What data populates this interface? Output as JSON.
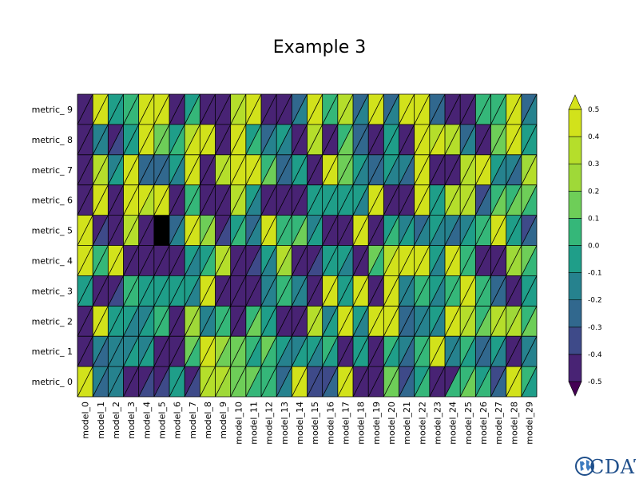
{
  "chart_data": {
    "type": "heatmap",
    "title": "Example 3",
    "xlabels": [
      "model_0",
      "model_1",
      "model_2",
      "model_3",
      "model_4",
      "model_5",
      "model_6",
      "model_7",
      "model_8",
      "model_9",
      "model_10",
      "model_11",
      "model_12",
      "model_13",
      "model_14",
      "model_15",
      "model_16",
      "model_17",
      "model_18",
      "model_19",
      "model_20",
      "model_21",
      "model_22",
      "model_23",
      "model_24",
      "model_25",
      "model_26",
      "model_27",
      "model_28",
      "model_29"
    ],
    "ylabels": [
      "metric_0",
      "metric_1",
      "metric_2",
      "metric_3",
      "metric_4",
      "metric_5",
      "metric_6",
      "metric_7",
      "metric_8",
      "metric_9"
    ],
    "ylabel_display": [
      "metric_ 0",
      "metric_ 1",
      "metric_ 2",
      "metric_ 3",
      "metric_ 4",
      "metric_ 5",
      "metric_ 6",
      "metric_ 7",
      "metric_ 8",
      "metric_ 9"
    ],
    "colorbar": {
      "levels": [
        -0.5,
        -0.4,
        -0.3,
        -0.2,
        -0.1,
        0.0,
        0.1,
        0.2,
        0.3,
        0.4,
        0.5
      ],
      "tick_labels": [
        "-0.5",
        "-0.4",
        "-0.3",
        "-0.2",
        "-0.1",
        "0.0",
        "0.1",
        "0.2",
        "0.3",
        "0.4",
        "0.5"
      ],
      "colors": [
        "#482374",
        "#3e4a89",
        "#31688e",
        "#26828e",
        "#1f9e89",
        "#35b779",
        "#6ece58",
        "#9fd938",
        "#b5de2b",
        "#d2e21b"
      ],
      "under_color": "#440154",
      "over_color": "#d5e21a",
      "missing_color": "#000000"
    },
    "missing": [
      {
        "row": 5,
        "col": 5
      }
    ],
    "values": [
      [
        [
          0.48,
          0.45
        ],
        [
          -0.2,
          -0.25
        ],
        [
          -0.2,
          -0.15
        ],
        [
          -0.45,
          -0.48
        ],
        [
          -0.45,
          -0.4
        ],
        [
          -0.45,
          -0.35
        ],
        [
          -0.1,
          -0.1
        ],
        [
          -0.45,
          -0.35
        ],
        [
          0.35,
          0.35
        ],
        [
          0.35,
          0.25
        ],
        [
          0.15,
          0.1
        ],
        [
          0.15,
          0.05
        ],
        [
          0.05,
          0.0
        ],
        [
          -0.25,
          -0.2
        ],
        [
          0.48,
          0.45
        ],
        [
          -0.35,
          -0.4
        ],
        [
          -0.4,
          -0.25
        ],
        [
          0.45,
          0.4
        ],
        [
          -0.48,
          -0.45
        ],
        [
          -0.48,
          -0.48
        ],
        [
          0.15,
          0.1
        ],
        [
          -0.35,
          -0.25
        ],
        [
          -0.1,
          0.0
        ],
        [
          -0.48,
          -0.48
        ],
        [
          -0.45,
          0.0
        ],
        [
          0.05,
          0.1
        ],
        [
          -0.1,
          0.0
        ],
        [
          -0.35,
          -0.25
        ],
        [
          0.48,
          0.45
        ],
        [
          0.0,
          -0.05
        ]
      ],
      [
        [
          -0.48,
          -0.45
        ],
        [
          -0.2,
          -0.25
        ],
        [
          -0.2,
          -0.15
        ],
        [
          -0.15,
          -0.1
        ],
        [
          -0.15,
          -0.1
        ],
        [
          -0.45,
          -0.48
        ],
        [
          -0.45,
          -0.48
        ],
        [
          0.1,
          0.05
        ],
        [
          0.48,
          0.45
        ],
        [
          0.2,
          0.1
        ],
        [
          0.15,
          0.1
        ],
        [
          0.05,
          -0.05
        ],
        [
          0.1,
          0.05
        ],
        [
          -0.1,
          -0.15
        ],
        [
          -0.15,
          -0.1
        ],
        [
          -0.1,
          -0.2
        ],
        [
          0.0,
          -0.05
        ],
        [
          -0.48,
          -0.45
        ],
        [
          -0.1,
          -0.05
        ],
        [
          -0.45,
          -0.48
        ],
        [
          0.05,
          -0.05
        ],
        [
          -0.2,
          -0.25
        ],
        [
          0.05,
          0.05
        ],
        [
          0.48,
          0.45
        ],
        [
          -0.2,
          -0.15
        ],
        [
          0.05,
          -0.05
        ],
        [
          -0.3,
          -0.25
        ],
        [
          -0.1,
          -0.15
        ],
        [
          -0.45,
          -0.48
        ],
        [
          -0.2,
          -0.15
        ]
      ],
      [
        [
          -0.48,
          -0.45
        ],
        [
          0.48,
          0.45
        ],
        [
          -0.1,
          -0.05
        ],
        [
          -0.1,
          -0.15
        ],
        [
          -0.15,
          -0.1
        ],
        [
          0.05,
          0.0
        ],
        [
          -0.48,
          -0.45
        ],
        [
          0.25,
          0.2
        ],
        [
          -0.2,
          -0.15
        ],
        [
          0.05,
          0.0
        ],
        [
          -0.45,
          -0.48
        ],
        [
          0.05,
          0.1
        ],
        [
          -0.1,
          -0.05
        ],
        [
          -0.45,
          -0.45
        ],
        [
          -0.45,
          -0.45
        ],
        [
          0.35,
          0.3
        ],
        [
          -0.15,
          -0.1
        ],
        [
          0.48,
          0.45
        ],
        [
          -0.1,
          -0.15
        ],
        [
          0.48,
          0.45
        ],
        [
          0.48,
          0.45
        ],
        [
          -0.25,
          -0.3
        ],
        [
          -0.2,
          -0.15
        ],
        [
          -0.1,
          -0.15
        ],
        [
          0.48,
          0.45
        ],
        [
          0.35,
          0.3
        ],
        [
          0.05,
          0.1
        ],
        [
          0.3,
          0.35
        ],
        [
          0.25,
          0.3
        ],
        [
          0.05,
          0.1
        ]
      ],
      [
        [
          -0.1,
          -0.05
        ],
        [
          -0.48,
          -0.45
        ],
        [
          -0.45,
          -0.4
        ],
        [
          0.05,
          0.0
        ],
        [
          -0.1,
          -0.05
        ],
        [
          -0.1,
          -0.05
        ],
        [
          -0.05,
          -0.1
        ],
        [
          -0.1,
          -0.15
        ],
        [
          0.48,
          0.45
        ],
        [
          -0.45,
          -0.48
        ],
        [
          -0.45,
          -0.48
        ],
        [
          -0.45,
          -0.48
        ],
        [
          -0.2,
          -0.15
        ],
        [
          0.0,
          0.05
        ],
        [
          -0.2,
          -0.15
        ],
        [
          -0.45,
          -0.48
        ],
        [
          0.48,
          0.45
        ],
        [
          -0.1,
          -0.05
        ],
        [
          0.45,
          0.45
        ],
        [
          -0.45,
          -0.48
        ],
        [
          0.48,
          0.45
        ],
        [
          -0.2,
          -0.15
        ],
        [
          0.0,
          0.05
        ],
        [
          -0.1,
          -0.15
        ],
        [
          0.0,
          0.05
        ],
        [
          0.48,
          0.45
        ],
        [
          0.05,
          0.0
        ],
        [
          -0.3,
          -0.25
        ],
        [
          -0.45,
          -0.48
        ],
        [
          -0.1,
          -0.05
        ]
      ],
      [
        [
          0.45,
          0.4
        ],
        [
          0.05,
          0.0
        ],
        [
          0.48,
          0.45
        ],
        [
          -0.45,
          -0.48
        ],
        [
          -0.45,
          -0.48
        ],
        [
          -0.45,
          -0.48
        ],
        [
          -0.45,
          -0.48
        ],
        [
          -0.1,
          -0.15
        ],
        [
          -0.05,
          0.0
        ],
        [
          0.35,
          0.3
        ],
        [
          -0.45,
          -0.48
        ],
        [
          -0.45,
          -0.35
        ],
        [
          -0.1,
          -0.15
        ],
        [
          0.3,
          0.25
        ],
        [
          -0.45,
          -0.48
        ],
        [
          -0.45,
          -0.35
        ],
        [
          -0.1,
          -0.05
        ],
        [
          -0.1,
          -0.15
        ],
        [
          -0.45,
          -0.48
        ],
        [
          0.1,
          0.05
        ],
        [
          0.35,
          0.4
        ],
        [
          0.48,
          0.45
        ],
        [
          0.45,
          0.4
        ],
        [
          -0.1,
          -0.15
        ],
        [
          0.48,
          0.45
        ],
        [
          0.05,
          0.0
        ],
        [
          -0.45,
          -0.48
        ],
        [
          -0.45,
          -0.48
        ],
        [
          0.2,
          0.25
        ],
        [
          0.1,
          0.05
        ]
      ],
      [
        [
          0.45,
          0.4
        ],
        [
          -0.45,
          -0.35
        ],
        [
          -0.45,
          -0.48
        ],
        [
          0.35,
          0.3
        ],
        [
          -0.45,
          -0.48
        ],
        [
          null,
          null
        ],
        [
          -0.25,
          -0.2
        ],
        [
          0.48,
          0.45
        ],
        [
          0.15,
          0.2
        ],
        [
          -0.45,
          -0.35
        ],
        [
          -0.05,
          0.0
        ],
        [
          -0.25,
          -0.2
        ],
        [
          0.48,
          0.45
        ],
        [
          0.0,
          0.05
        ],
        [
          0.05,
          0.1
        ],
        [
          -0.15,
          -0.1
        ],
        [
          -0.45,
          -0.48
        ],
        [
          -0.45,
          -0.48
        ],
        [
          0.48,
          0.45
        ],
        [
          -0.45,
          -0.48
        ],
        [
          -0.05,
          0.0
        ],
        [
          -0.15,
          -0.1
        ],
        [
          -0.25,
          -0.2
        ],
        [
          -0.1,
          -0.15
        ],
        [
          -0.2,
          -0.25
        ],
        [
          -0.15,
          -0.1
        ],
        [
          0.05,
          0.0
        ],
        [
          0.48,
          0.45
        ],
        [
          -0.1,
          -0.05
        ],
        [
          -0.35,
          -0.25
        ]
      ],
      [
        [
          -0.48,
          -0.45
        ],
        [
          0.48,
          0.4
        ],
        [
          -0.45,
          -0.48
        ],
        [
          0.48,
          0.45
        ],
        [
          0.45,
          0.35
        ],
        [
          0.48,
          0.4
        ],
        [
          -0.45,
          -0.48
        ],
        [
          0.05,
          0.0
        ],
        [
          -0.45,
          -0.48
        ],
        [
          -0.45,
          -0.48
        ],
        [
          0.35,
          0.3
        ],
        [
          -0.1,
          -0.15
        ],
        [
          -0.45,
          -0.48
        ],
        [
          -0.45,
          -0.48
        ],
        [
          -0.45,
          -0.48
        ],
        [
          -0.1,
          -0.05
        ],
        [
          -0.05,
          -0.1
        ],
        [
          -0.1,
          -0.05
        ],
        [
          -0.1,
          -0.15
        ],
        [
          0.48,
          0.45
        ],
        [
          -0.45,
          -0.48
        ],
        [
          -0.45,
          -0.48
        ],
        [
          0.48,
          0.45
        ],
        [
          -0.1,
          -0.05
        ],
        [
          0.35,
          0.35
        ],
        [
          0.35,
          0.3
        ],
        [
          -0.35,
          -0.25
        ],
        [
          0.05,
          0.1
        ],
        [
          0.05,
          0.1
        ],
        [
          0.1,
          0.05
        ]
      ],
      [
        [
          -0.48,
          -0.45
        ],
        [
          0.35,
          0.3
        ],
        [
          -0.15,
          -0.1
        ],
        [
          0.48,
          0.45
        ],
        [
          -0.25,
          -0.3
        ],
        [
          -0.25,
          -0.3
        ],
        [
          -0.1,
          -0.15
        ],
        [
          0.48,
          0.45
        ],
        [
          -0.45,
          -0.48
        ],
        [
          0.35,
          0.3
        ],
        [
          0.48,
          0.45
        ],
        [
          0.48,
          0.45
        ],
        [
          0.05,
          0.1
        ],
        [
          -0.25,
          -0.3
        ],
        [
          -0.1,
          -0.05
        ],
        [
          -0.48,
          -0.45
        ],
        [
          0.45,
          0.4
        ],
        [
          0.15,
          0.1
        ],
        [
          -0.1,
          -0.15
        ],
        [
          -0.25,
          -0.3
        ],
        [
          -0.1,
          -0.15
        ],
        [
          -0.2,
          -0.25
        ],
        [
          0.48,
          0.45
        ],
        [
          -0.45,
          -0.48
        ],
        [
          -0.45,
          -0.48
        ],
        [
          0.35,
          0.3
        ],
        [
          0.48,
          0.4
        ],
        [
          -0.1,
          -0.15
        ],
        [
          -0.2,
          -0.25
        ],
        [
          0.25,
          0.3
        ]
      ],
      [
        [
          -0.48,
          -0.45
        ],
        [
          -0.15,
          -0.2
        ],
        [
          -0.45,
          -0.35
        ],
        [
          -0.1,
          -0.05
        ],
        [
          0.48,
          0.45
        ],
        [
          0.15,
          0.1
        ],
        [
          -0.05,
          0.0
        ],
        [
          0.35,
          0.4
        ],
        [
          0.48,
          0.45
        ],
        [
          -0.45,
          -0.48
        ],
        [
          0.48,
          0.45
        ],
        [
          -0.05,
          0.0
        ],
        [
          -0.25,
          -0.2
        ],
        [
          -0.1,
          -0.15
        ],
        [
          -0.45,
          -0.48
        ],
        [
          0.35,
          0.3
        ],
        [
          -0.45,
          -0.48
        ],
        [
          0.05,
          0.1
        ],
        [
          -0.25,
          -0.3
        ],
        [
          -0.45,
          -0.48
        ],
        [
          -0.1,
          -0.05
        ],
        [
          -0.45,
          -0.48
        ],
        [
          0.48,
          0.45
        ],
        [
          0.35,
          0.4
        ],
        [
          0.35,
          0.3
        ],
        [
          -0.25,
          -0.2
        ],
        [
          -0.45,
          -0.48
        ],
        [
          0.15,
          0.1
        ],
        [
          0.48,
          0.45
        ],
        [
          -0.1,
          -0.05
        ]
      ],
      [
        [
          -0.48,
          -0.45
        ],
        [
          0.48,
          0.45
        ],
        [
          -0.1,
          -0.05
        ],
        [
          0.05,
          0.0
        ],
        [
          0.48,
          0.45
        ],
        [
          0.45,
          0.48
        ],
        [
          -0.45,
          -0.48
        ],
        [
          -0.05,
          0.0
        ],
        [
          -0.45,
          -0.48
        ],
        [
          -0.45,
          -0.48
        ],
        [
          0.35,
          0.3
        ],
        [
          0.48,
          0.45
        ],
        [
          -0.48,
          -0.45
        ],
        [
          -0.45,
          -0.48
        ],
        [
          -0.25,
          -0.2
        ],
        [
          0.45,
          0.48
        ],
        [
          0.05,
          0.0
        ],
        [
          0.35,
          0.3
        ],
        [
          -0.25,
          -0.2
        ],
        [
          0.48,
          0.45
        ],
        [
          -0.25,
          -0.2
        ],
        [
          0.48,
          0.45
        ],
        [
          0.48,
          0.45
        ],
        [
          -0.25,
          -0.3
        ],
        [
          -0.45,
          -0.48
        ],
        [
          -0.48,
          -0.45
        ],
        [
          0.05,
          0.0
        ],
        [
          0.05,
          0.0
        ],
        [
          0.48,
          0.45
        ],
        [
          -0.25,
          -0.2
        ]
      ]
    ]
  },
  "logo": {
    "text": "CDAT"
  }
}
